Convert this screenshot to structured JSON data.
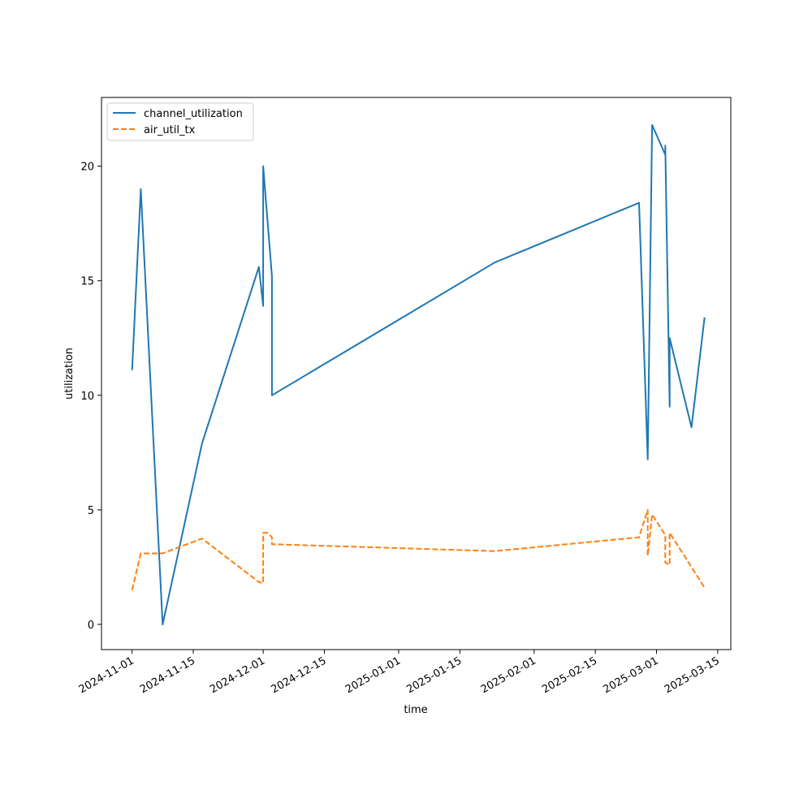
{
  "chart_data": {
    "type": "line",
    "title": "",
    "xlabel": "time",
    "ylabel": "utilization",
    "x_type": "date",
    "xlim": [
      "2024-10-25",
      "2025-03-18"
    ],
    "ylim": [
      -1.1,
      23.0
    ],
    "x_ticks": [
      "2024-11-01",
      "2024-11-15",
      "2024-12-01",
      "2024-12-15",
      "2025-01-01",
      "2025-01-15",
      "2025-02-01",
      "2025-02-15",
      "2025-03-01",
      "2025-03-15"
    ],
    "y_ticks": [
      0,
      5,
      10,
      15,
      20
    ],
    "grid": false,
    "legend_position": "upper-left",
    "series": [
      {
        "name": "channel_utilization",
        "color": "#1f77b4",
        "dash": "solid",
        "points": [
          [
            "2024-11-01",
            11.1
          ],
          [
            "2024-11-03",
            19.0
          ],
          [
            "2024-11-08",
            0.0
          ],
          [
            "2024-11-17",
            7.9
          ],
          [
            "2024-11-30",
            15.6
          ],
          [
            "2024-12-01",
            13.9
          ],
          [
            "2024-12-01",
            20.0
          ],
          [
            "2024-12-03",
            15.2
          ],
          [
            "2024-12-03",
            10.0
          ],
          [
            "2025-01-23",
            15.8
          ],
          [
            "2025-02-25",
            18.4
          ],
          [
            "2025-02-27",
            7.2
          ],
          [
            "2025-02-28",
            21.8
          ],
          [
            "2025-03-03",
            20.5
          ],
          [
            "2025-03-03",
            20.9
          ],
          [
            "2025-03-04",
            9.5
          ],
          [
            "2025-03-04",
            12.5
          ],
          [
            "2025-03-09",
            8.6
          ],
          [
            "2025-03-12",
            13.4
          ]
        ]
      },
      {
        "name": "air_util_tx",
        "color": "#ff7f0e",
        "dash": "dashed",
        "points": [
          [
            "2024-11-01",
            1.5
          ],
          [
            "2024-11-03",
            3.1
          ],
          [
            "2024-11-08",
            3.1
          ],
          [
            "2024-11-17",
            3.75
          ],
          [
            "2024-11-30",
            1.85
          ],
          [
            "2024-12-01",
            1.8
          ],
          [
            "2024-12-01",
            4.0
          ],
          [
            "2024-12-02",
            4.0
          ],
          [
            "2024-12-03",
            3.8
          ],
          [
            "2024-12-03",
            3.5
          ],
          [
            "2025-01-23",
            3.2
          ],
          [
            "2025-02-25",
            3.8
          ],
          [
            "2025-02-27",
            5.0
          ],
          [
            "2025-02-27",
            3.0
          ],
          [
            "2025-02-28",
            4.8
          ],
          [
            "2025-03-03",
            3.9
          ],
          [
            "2025-03-03",
            2.7
          ],
          [
            "2025-03-04",
            2.6
          ],
          [
            "2025-03-04",
            4.0
          ],
          [
            "2025-03-12",
            1.6
          ]
        ]
      }
    ]
  }
}
